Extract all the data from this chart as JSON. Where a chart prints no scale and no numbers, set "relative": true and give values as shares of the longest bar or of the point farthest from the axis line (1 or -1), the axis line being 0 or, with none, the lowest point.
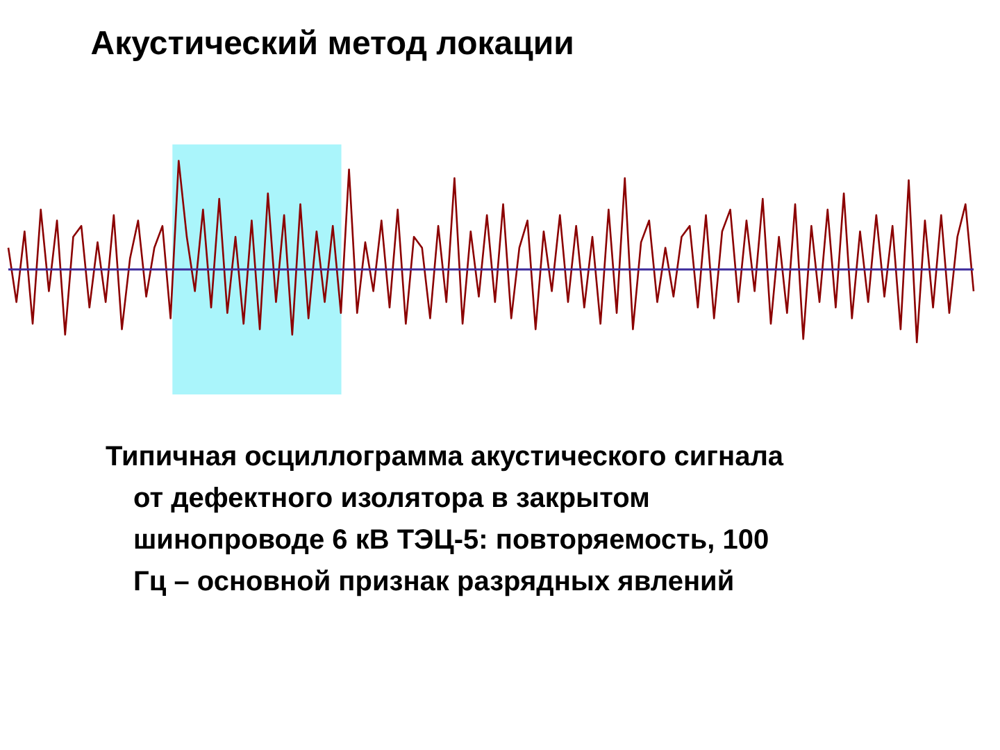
{
  "chart_data": {
    "type": "line",
    "title": "Акустический метод локации",
    "annotations": [
      "Типичная осциллограмма акустического сигнала от дефектного изолятора в закрытом шинопроводе 6 кВ ТЭЦ-5: повторяемость, 100 Гц – основной признак разрядных явлений"
    ],
    "relative": true,
    "categories": [
      null,
      null,
      null,
      null,
      null,
      null,
      null,
      null,
      null,
      null,
      null,
      null,
      null,
      null,
      null,
      null,
      null,
      null,
      null,
      null,
      null,
      null,
      null,
      null,
      null,
      null,
      null,
      null,
      null,
      null,
      null,
      null,
      null,
      null,
      null,
      null,
      null,
      null,
      null,
      null,
      null,
      null,
      null,
      null,
      null,
      null,
      null,
      null,
      null,
      null,
      null,
      null,
      null,
      null,
      null,
      null,
      null,
      null,
      null,
      null,
      null,
      null,
      null,
      null,
      null,
      null,
      null,
      null,
      null,
      null,
      null,
      null,
      null,
      null,
      null,
      null,
      null,
      null,
      null,
      null,
      null,
      null,
      null,
      null,
      null,
      null,
      null,
      null,
      null,
      null,
      null,
      null,
      null,
      null,
      null,
      null,
      null,
      null,
      null,
      null,
      null,
      null,
      null,
      null,
      null,
      null,
      null,
      null,
      null,
      null,
      null,
      null,
      null,
      null,
      null,
      null,
      null,
      null,
      null,
      null
    ],
    "series": [
      {
        "color": "#8b0000",
        "values": [
          0.2,
          -0.3,
          0.35,
          -0.5,
          0.55,
          -0.2,
          0.45,
          -0.6,
          0.3,
          0.4,
          -0.35,
          0.25,
          -0.3,
          0.5,
          -0.55,
          0.1,
          0.45,
          -0.25,
          0.2,
          0.4,
          -0.45,
          1,
          0.3,
          -0.2,
          0.55,
          -0.35,
          0.65,
          -0.4,
          0.3,
          -0.5,
          0.45,
          -0.55,
          0.7,
          -0.3,
          0.5,
          -0.6,
          0.6,
          -0.45,
          0.35,
          -0.3,
          0.4,
          -0.4,
          0.92,
          -0.4,
          0.25,
          -0.2,
          0.45,
          -0.35,
          0.55,
          -0.5,
          0.3,
          0.2,
          -0.45,
          0.4,
          -0.3,
          0.84,
          -0.5,
          0.35,
          -0.25,
          0.5,
          -0.3,
          0.6,
          -0.45,
          0.2,
          0.45,
          -0.55,
          0.35,
          -0.2,
          0.5,
          -0.3,
          0.4,
          -0.35,
          0.3,
          -0.5,
          0.55,
          -0.4,
          0.84,
          -0.55,
          0.25,
          0.45,
          -0.3,
          0.2,
          -0.25,
          0.3,
          0.4,
          -0.35,
          0.5,
          -0.45,
          0.35,
          0.55,
          -0.3,
          0.45,
          -0.2,
          0.65,
          -0.5,
          0.3,
          -0.4,
          0.6,
          -0.64,
          0.4,
          -0.3,
          0.55,
          -0.35,
          0.7,
          -0.45,
          0.35,
          -0.3,
          0.5,
          -0.25,
          0.4,
          -0.55,
          0.82,
          -0.67,
          0.45,
          -0.35,
          0.5,
          -0.4,
          0.3,
          0.6,
          -0.2
        ]
      }
    ],
    "ref_lines": [
      {
        "axis": "y",
        "value": 0,
        "color": "#3b2a9b"
      }
    ],
    "grid": false
  }
}
